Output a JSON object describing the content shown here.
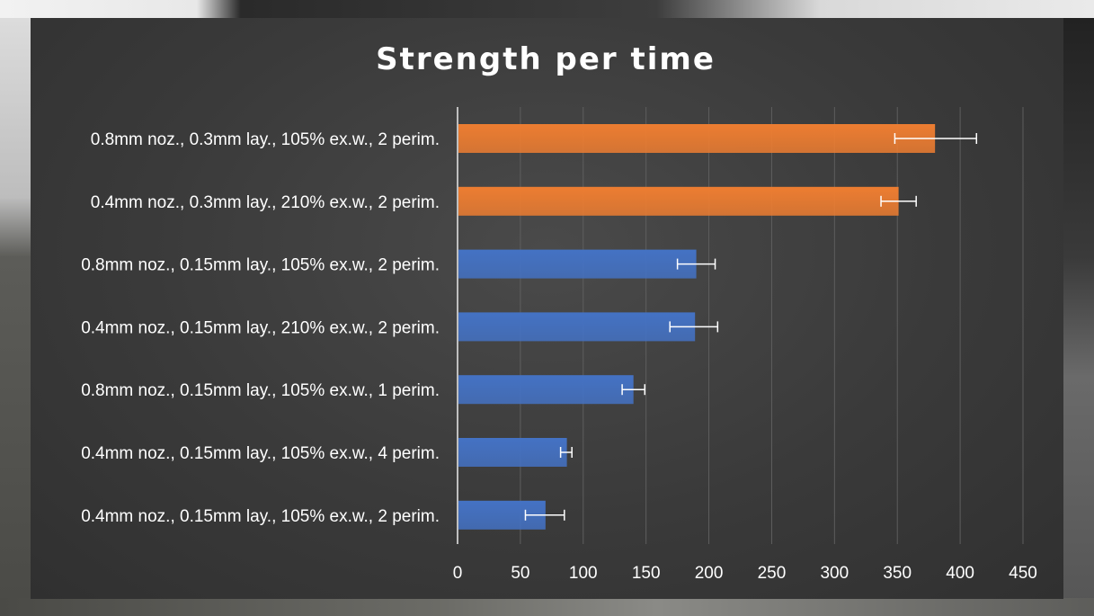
{
  "chart_data": {
    "type": "bar",
    "orientation": "horizontal",
    "title": "Strength per time",
    "xlabel": "",
    "ylabel": "",
    "xlim": [
      0,
      450
    ],
    "x_ticks": [
      0,
      50,
      100,
      150,
      200,
      250,
      300,
      350,
      400,
      450
    ],
    "grid": true,
    "legend": "none",
    "categories": [
      "0.8mm noz., 0.3mm lay., 105% ex.w., 2 perim.",
      "0.4mm noz., 0.3mm lay., 210% ex.w., 2 perim.",
      "0.8mm noz., 0.15mm lay., 105% ex.w., 2 perim.",
      "0.4mm noz., 0.15mm lay., 210% ex.w., 2 perim.",
      "0.8mm noz., 0.15mm lay., 105% ex.w., 1 perim.",
      "0.4mm noz., 0.15mm lay., 105% ex.w., 4 perim.",
      "0.4mm noz., 0.15mm lay., 105% ex.w., 2 perim."
    ],
    "values": [
      380,
      351,
      190,
      189,
      140,
      87,
      70
    ],
    "error_low": [
      348,
      337,
      175,
      169,
      131,
      82,
      54
    ],
    "error_high": [
      413,
      365,
      205,
      207,
      149,
      91,
      85
    ],
    "bar_colors": [
      "#ed7d31",
      "#ed7d31",
      "#4472c4",
      "#4472c4",
      "#4472c4",
      "#4472c4",
      "#4472c4"
    ]
  }
}
